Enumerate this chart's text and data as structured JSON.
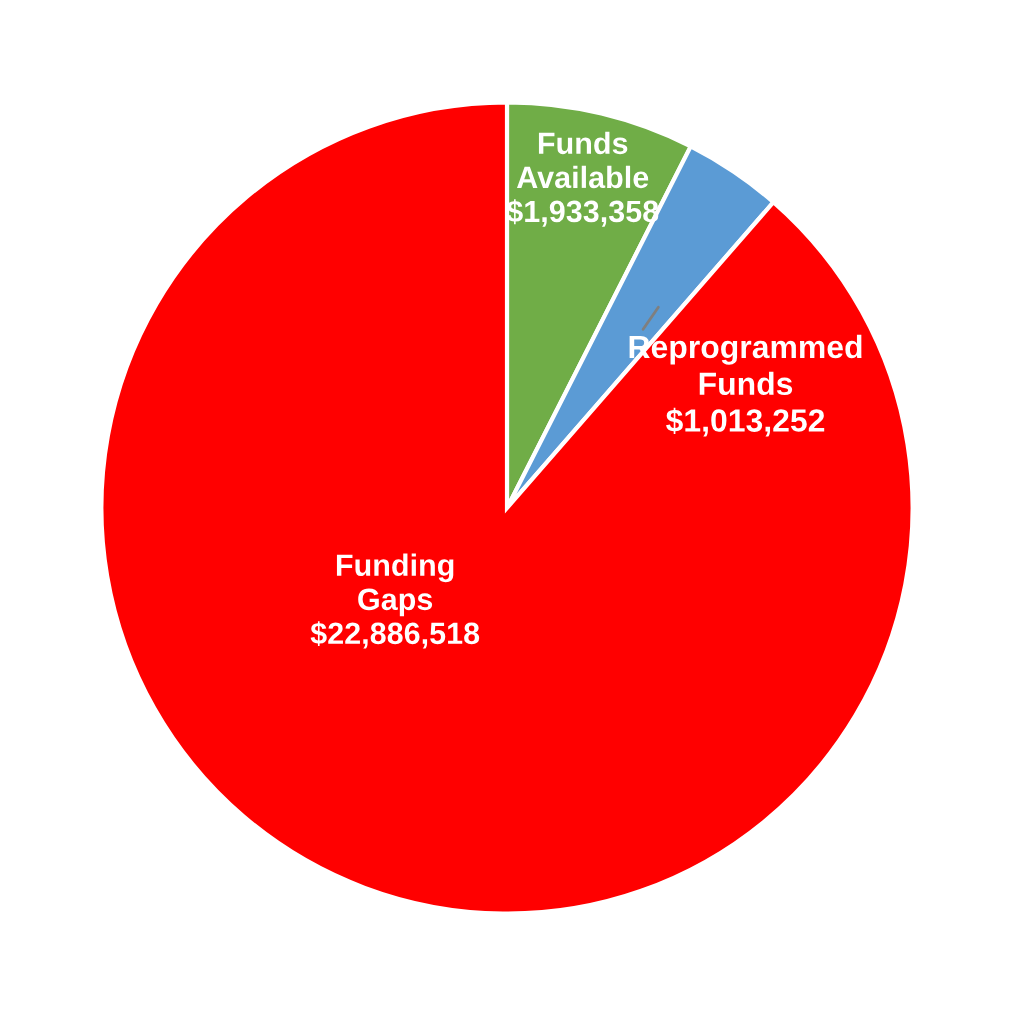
{
  "chart_data": {
    "type": "pie",
    "categories": [
      "Funds Available",
      "Reprogrammed Funds",
      "Funding Gaps"
    ],
    "values": [
      1933358,
      1013252,
      22886518
    ],
    "value_labels": [
      "$1,933,358",
      "$1,013,252",
      "$22,886,518"
    ],
    "colors": [
      "#70ad47",
      "#5b9bd5",
      "#ff0000"
    ],
    "legend": false
  }
}
